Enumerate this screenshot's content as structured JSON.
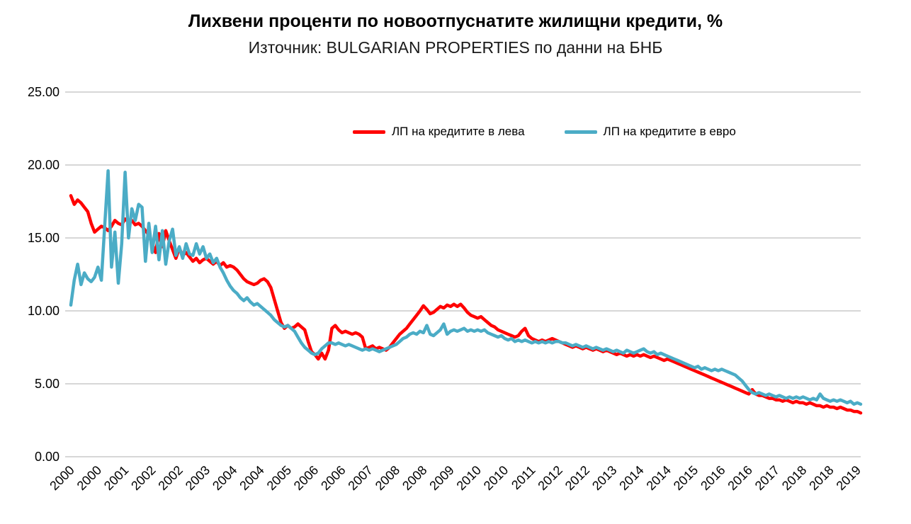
{
  "title": "Лихвени проценти по новоотпуснатите жилищни кредити, %",
  "subtitle": "Източник: BULGARIAN PROPERTIES по данни на БНБ",
  "chart_data": {
    "type": "line",
    "title": "Лихвени проценти по новоотпуснатите жилищни кредити, %",
    "subtitle": "Източник: BULGARIAN PROPERTIES по данни на БНБ",
    "ylabel": "",
    "xlabel": "",
    "ylim": [
      0,
      25
    ],
    "yticks": [
      0,
      5,
      10,
      15,
      20,
      25
    ],
    "ytick_labels": [
      "0.00",
      "5.00",
      "10.00",
      "15.00",
      "20.00",
      "25.00"
    ],
    "grid": true,
    "grid_color": "#BFBFBF",
    "legend_position": "top-center",
    "x_unit": "month",
    "x_range": "2000-01 to 2019-06",
    "x_tick_interval": 8,
    "x_tick_labels": [
      "2000",
      "2000",
      "2001",
      "2002",
      "2002",
      "2003",
      "2004",
      "2004",
      "2005",
      "2006",
      "2006",
      "2007",
      "2008",
      "2008",
      "2009",
      "2010",
      "2010",
      "2011",
      "2012",
      "2012",
      "2013",
      "2014",
      "2014",
      "2015",
      "2016",
      "2016",
      "2017",
      "2018",
      "2018",
      "2019"
    ],
    "series": [
      {
        "name": "ЛП на кредитите в лева",
        "color": "#FF0000",
        "values": [
          17.9,
          17.3,
          17.6,
          17.4,
          17.1,
          16.8,
          16.0,
          15.4,
          15.6,
          15.8,
          15.7,
          15.5,
          15.8,
          16.2,
          16.0,
          15.9,
          16.3,
          16.1,
          16.2,
          15.9,
          16.0,
          15.8,
          15.5,
          15.2,
          14.6,
          14.0,
          15.3,
          14.4,
          15.5,
          14.8,
          14.2,
          13.6,
          14.3,
          13.8,
          14.0,
          13.7,
          13.4,
          13.6,
          13.3,
          13.5,
          13.6,
          13.4,
          13.2,
          13.4,
          13.1,
          13.3,
          13.0,
          13.1,
          13.0,
          12.8,
          12.5,
          12.2,
          12.0,
          11.9,
          11.8,
          11.9,
          12.1,
          12.2,
          12.0,
          11.6,
          10.8,
          10.0,
          9.2,
          8.8,
          9.0,
          8.8,
          8.9,
          9.1,
          8.9,
          8.7,
          7.9,
          7.2,
          7.0,
          6.7,
          7.1,
          6.7,
          7.3,
          8.8,
          9.0,
          8.7,
          8.5,
          8.6,
          8.5,
          8.4,
          8.5,
          8.4,
          8.2,
          7.4,
          7.5,
          7.6,
          7.4,
          7.5,
          7.4,
          7.3,
          7.5,
          7.8,
          8.1,
          8.4,
          8.6,
          8.8,
          9.1,
          9.4,
          9.7,
          10.0,
          10.35,
          10.1,
          9.8,
          9.9,
          10.1,
          10.3,
          10.2,
          10.4,
          10.3,
          10.45,
          10.3,
          10.45,
          10.2,
          9.9,
          9.7,
          9.6,
          9.5,
          9.6,
          9.4,
          9.2,
          9.0,
          8.9,
          8.7,
          8.6,
          8.5,
          8.4,
          8.3,
          8.2,
          8.3,
          8.6,
          8.8,
          8.3,
          8.1,
          8.0,
          7.9,
          8.0,
          7.9,
          8.0,
          8.1,
          8.0,
          7.9,
          7.8,
          7.7,
          7.6,
          7.5,
          7.6,
          7.5,
          7.4,
          7.5,
          7.4,
          7.3,
          7.4,
          7.3,
          7.2,
          7.3,
          7.2,
          7.1,
          7.0,
          7.1,
          7.0,
          6.9,
          7.0,
          6.9,
          7.0,
          6.9,
          7.0,
          6.9,
          6.8,
          6.9,
          6.8,
          6.7,
          6.6,
          6.7,
          6.6,
          6.5,
          6.4,
          6.3,
          6.2,
          6.1,
          6.0,
          5.9,
          5.8,
          5.7,
          5.6,
          5.5,
          5.4,
          5.3,
          5.2,
          5.1,
          5.0,
          4.9,
          4.8,
          4.7,
          4.6,
          4.5,
          4.4,
          4.3,
          4.6,
          4.3,
          4.2,
          4.2,
          4.1,
          4.0,
          4.0,
          3.9,
          3.9,
          3.8,
          3.9,
          3.8,
          3.7,
          3.8,
          3.7,
          3.7,
          3.6,
          3.7,
          3.6,
          3.5,
          3.5,
          3.4,
          3.5,
          3.4,
          3.4,
          3.3,
          3.4,
          3.3,
          3.2,
          3.2,
          3.1,
          3.1,
          3.0
        ]
      },
      {
        "name": "ЛП на кредитите в евро",
        "color": "#4BACC6",
        "values": [
          10.4,
          12.1,
          13.2,
          11.8,
          12.6,
          12.2,
          12.0,
          12.3,
          13.0,
          12.1,
          15.9,
          19.6,
          13.0,
          15.4,
          11.9,
          14.6,
          19.5,
          15.0,
          17.0,
          16.2,
          17.3,
          17.1,
          13.4,
          16.0,
          14.0,
          15.8,
          13.5,
          15.5,
          13.2,
          14.8,
          15.6,
          13.8,
          14.4,
          13.6,
          14.6,
          13.9,
          13.8,
          14.6,
          13.9,
          14.4,
          13.6,
          13.9,
          13.3,
          13.6,
          13.0,
          12.6,
          12.1,
          11.7,
          11.4,
          11.2,
          10.9,
          10.7,
          10.9,
          10.6,
          10.4,
          10.5,
          10.3,
          10.1,
          9.9,
          9.7,
          9.4,
          9.2,
          9.0,
          8.9,
          9.0,
          8.8,
          8.6,
          8.2,
          7.8,
          7.5,
          7.3,
          7.1,
          7.0,
          7.1,
          7.4,
          7.6,
          7.8,
          7.8,
          7.7,
          7.8,
          7.7,
          7.6,
          7.7,
          7.6,
          7.5,
          7.4,
          7.3,
          7.4,
          7.3,
          7.4,
          7.3,
          7.2,
          7.3,
          7.4,
          7.5,
          7.6,
          7.7,
          7.9,
          8.1,
          8.2,
          8.4,
          8.5,
          8.4,
          8.6,
          8.5,
          9.0,
          8.4,
          8.3,
          8.5,
          8.7,
          9.1,
          8.4,
          8.6,
          8.7,
          8.6,
          8.7,
          8.8,
          8.6,
          8.7,
          8.6,
          8.7,
          8.6,
          8.7,
          8.5,
          8.4,
          8.3,
          8.2,
          8.3,
          8.1,
          8.0,
          8.1,
          7.9,
          8.0,
          7.9,
          8.0,
          7.9,
          7.8,
          7.9,
          7.8,
          7.9,
          7.8,
          7.9,
          7.8,
          7.9,
          7.9,
          7.8,
          7.8,
          7.7,
          7.6,
          7.7,
          7.6,
          7.5,
          7.6,
          7.5,
          7.4,
          7.5,
          7.4,
          7.3,
          7.4,
          7.3,
          7.2,
          7.3,
          7.2,
          7.1,
          7.3,
          7.2,
          7.1,
          7.2,
          7.3,
          7.4,
          7.2,
          7.1,
          7.2,
          7.0,
          7.1,
          7.0,
          6.9,
          6.8,
          6.7,
          6.6,
          6.5,
          6.4,
          6.3,
          6.2,
          6.1,
          6.2,
          6.0,
          6.1,
          6.0,
          5.9,
          6.0,
          5.9,
          6.0,
          5.9,
          5.8,
          5.7,
          5.6,
          5.4,
          5.2,
          4.9,
          4.6,
          4.4,
          4.3,
          4.4,
          4.3,
          4.2,
          4.3,
          4.2,
          4.1,
          4.2,
          4.1,
          4.0,
          4.1,
          4.0,
          4.1,
          4.0,
          4.1,
          4.0,
          3.9,
          4.0,
          3.9,
          4.3,
          4.0,
          3.9,
          3.8,
          3.9,
          3.8,
          3.9,
          3.8,
          3.7,
          3.8,
          3.6,
          3.7,
          3.6
        ]
      }
    ]
  }
}
